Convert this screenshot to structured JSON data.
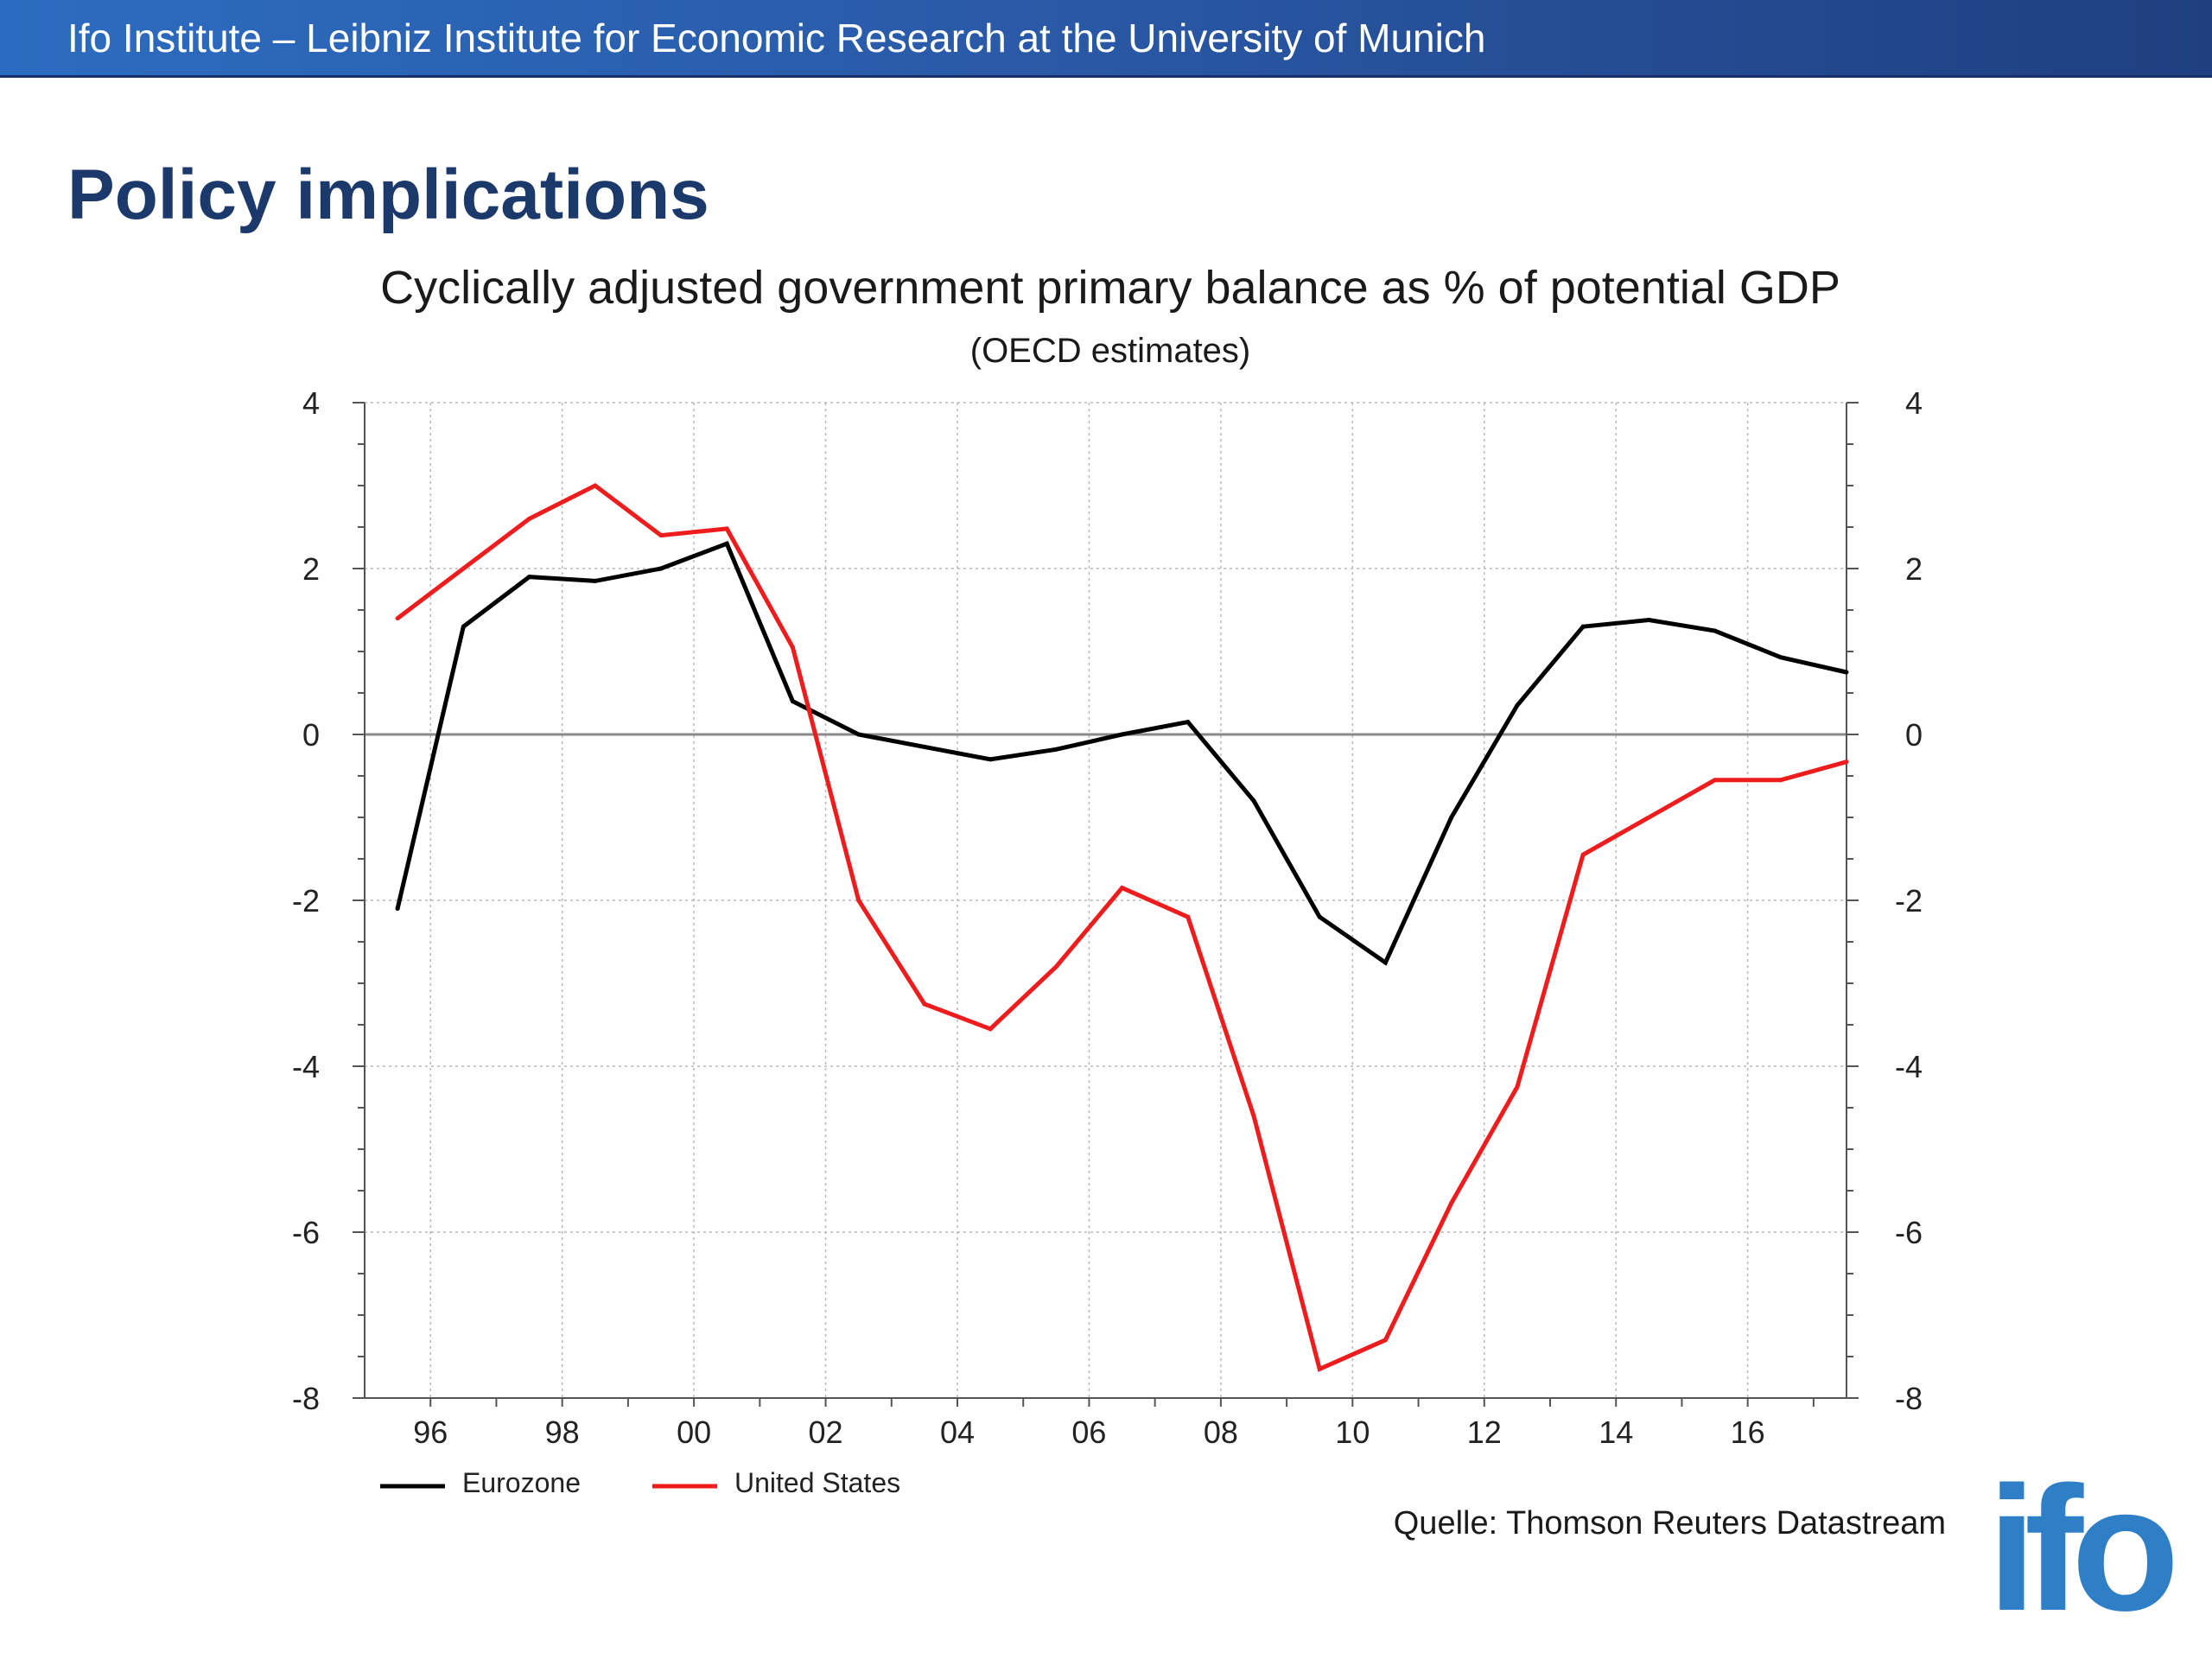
{
  "header": {
    "institute": "Ifo Institute – Leibniz Institute for Economic Research at the University of Munich"
  },
  "slide": {
    "title": "Policy implications",
    "source": "Quelle: Thomson Reuters Datastream",
    "logo_text": "ifo"
  },
  "colors": {
    "brand_dark": "#1b3a6b",
    "eurozone": "#000000",
    "united_states": "#ee1c1c"
  },
  "chart_data": {
    "type": "line",
    "title": "Cyclically adjusted government primary balance as % of potential GDP",
    "subtitle": "(OECD estimates)",
    "xlabel": "",
    "ylabel": "",
    "x": [
      1995.5,
      1996.5,
      1997.5,
      1998.5,
      1999.5,
      2000.5,
      2001.5,
      2002.5,
      2003.5,
      2004.5,
      2005.5,
      2006.5,
      2007.5,
      2008.5,
      2009.5,
      2010.5,
      2011.5,
      2012.5,
      2013.5,
      2014.5,
      2015.5,
      2016.5,
      2017.5
    ],
    "xlim": [
      1995,
      2017.5
    ],
    "ylim": [
      -8,
      4
    ],
    "x_ticks": [
      1996,
      1998,
      2000,
      2002,
      2004,
      2006,
      2008,
      2010,
      2012,
      2014,
      2016
    ],
    "x_tick_labels": [
      "96",
      "98",
      "00",
      "02",
      "04",
      "06",
      "08",
      "10",
      "12",
      "14",
      "16"
    ],
    "y_ticks": [
      -8,
      -6,
      -4,
      -2,
      0,
      2,
      4
    ],
    "y_tick_labels": [
      "-8",
      "-6",
      "-4",
      "-2",
      "0",
      "2",
      "4"
    ],
    "grid": true,
    "zero_line": true,
    "legend_position": "bottom-left",
    "series": [
      {
        "name": "Eurozone",
        "color": "#000000",
        "values": [
          -2.1,
          1.3,
          1.9,
          1.85,
          2.0,
          2.3,
          0.4,
          0.0,
          -0.15,
          -0.3,
          -0.18,
          0.0,
          0.15,
          -0.8,
          -2.2,
          -2.75,
          -1.0,
          0.35,
          1.3,
          1.38,
          1.25,
          0.93,
          0.75
        ]
      },
      {
        "name": "United States",
        "color": "#ee1c1c",
        "values": [
          1.4,
          2.0,
          2.6,
          3.0,
          2.4,
          2.48,
          1.05,
          -2.0,
          -3.25,
          -3.55,
          -2.8,
          -1.85,
          -2.2,
          -4.6,
          -7.65,
          -7.3,
          -5.65,
          -4.25,
          -1.45,
          -1.0,
          -0.55,
          -0.55,
          -0.33
        ]
      }
    ]
  }
}
